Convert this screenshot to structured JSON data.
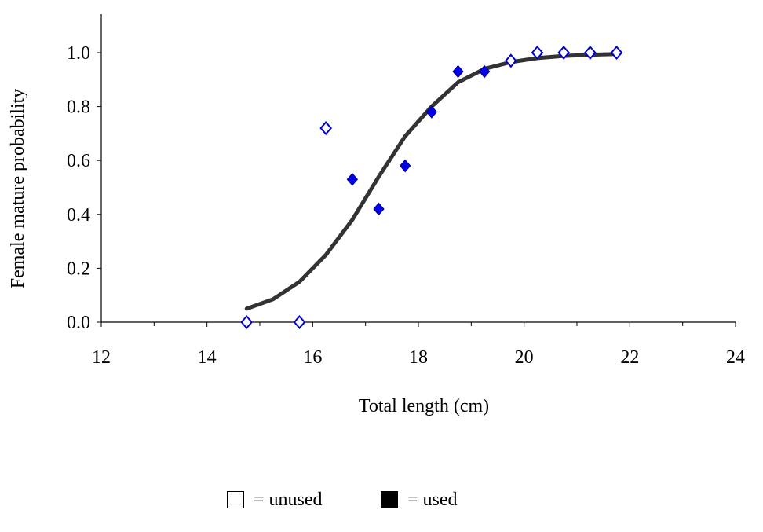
{
  "chart_data": {
    "type": "scatter",
    "xlabel": "Total length (cm)",
    "ylabel": "Female mature probability",
    "xlim": [
      12,
      24
    ],
    "ylim": [
      0,
      1.15
    ],
    "xticks": [
      "12",
      "14",
      "16",
      "18",
      "20",
      "22",
      "24"
    ],
    "yticks": [
      "0.0",
      "0.2",
      "0.4",
      "0.6",
      "0.8",
      "1.0"
    ],
    "grid": false,
    "series": [
      {
        "name": "unused",
        "marker": "open-diamond",
        "color": "#0000cc",
        "x": [
          14.75,
          15.75,
          16.25,
          19.75,
          20.25,
          20.75,
          21.25,
          21.75
        ],
        "y": [
          0.0,
          0.0,
          0.72,
          0.97,
          1.0,
          1.0,
          1.0,
          1.0
        ]
      },
      {
        "name": "used",
        "marker": "filled-diamond",
        "color": "#0000ee",
        "x": [
          16.75,
          17.25,
          17.75,
          18.25,
          18.75,
          19.25
        ],
        "y": [
          0.53,
          0.42,
          0.58,
          0.78,
          0.93,
          0.93
        ]
      },
      {
        "marker": "none",
        "line": "fitted-logistic",
        "color": "#333333",
        "x": [
          14.75,
          15.25,
          15.75,
          16.25,
          16.75,
          17.25,
          17.75,
          18.25,
          18.75,
          19.25,
          19.75,
          20.25,
          20.75,
          21.25,
          21.75
        ],
        "y": [
          0.05,
          0.085,
          0.15,
          0.25,
          0.38,
          0.54,
          0.69,
          0.8,
          0.89,
          0.94,
          0.965,
          0.98,
          0.988,
          0.992,
          0.995
        ]
      }
    ]
  },
  "legend": {
    "unused_label": "= unused",
    "used_label": "= used"
  }
}
